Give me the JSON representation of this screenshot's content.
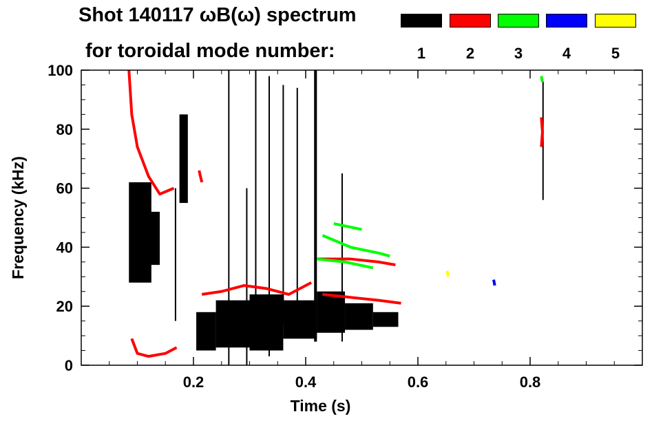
{
  "chart_data": {
    "type": "heatmap",
    "title_line1": "Shot 140117 ωB(ω) spectrum",
    "title_line2": "for toroidal mode number:",
    "xlabel": "Time (s)",
    "ylabel": "Frequency (kHz)",
    "xlim": [
      0.0,
      1.0
    ],
    "ylim": [
      0,
      100
    ],
    "x_ticks": [
      0.2,
      0.4,
      0.6,
      0.8
    ],
    "x_tick_labels": [
      "0.2",
      "0.4",
      "0.6",
      "0.8"
    ],
    "y_ticks": [
      0,
      20,
      40,
      60,
      80,
      100
    ],
    "y_tick_labels": [
      "0",
      "20",
      "40",
      "60",
      "80",
      "100"
    ],
    "legend": [
      {
        "label": "1",
        "color": "#000000"
      },
      {
        "label": "2",
        "color": "#ff0000"
      },
      {
        "label": "3",
        "color": "#00ff00"
      },
      {
        "label": "4",
        "color": "#0000ff"
      },
      {
        "label": "5",
        "color": "#ffff00"
      }
    ],
    "regions": [
      {
        "mode": 1,
        "t": [
          0.085,
          0.125
        ],
        "f": [
          28,
          62
        ]
      },
      {
        "mode": 1,
        "t": [
          0.09,
          0.14
        ],
        "f": [
          34,
          52
        ]
      },
      {
        "mode": 1,
        "t": [
          0.205,
          0.24
        ],
        "f": [
          5,
          18
        ]
      },
      {
        "mode": 1,
        "t": [
          0.24,
          0.3
        ],
        "f": [
          6,
          22
        ]
      },
      {
        "mode": 1,
        "t": [
          0.3,
          0.36
        ],
        "f": [
          5,
          24
        ]
      },
      {
        "mode": 1,
        "t": [
          0.36,
          0.42
        ],
        "f": [
          9,
          22
        ]
      },
      {
        "mode": 1,
        "t": [
          0.42,
          0.47
        ],
        "f": [
          11,
          25
        ]
      },
      {
        "mode": 1,
        "t": [
          0.47,
          0.52
        ],
        "f": [
          12,
          21
        ]
      },
      {
        "mode": 1,
        "t": [
          0.52,
          0.565
        ],
        "f": [
          13,
          18
        ]
      },
      {
        "mode": 1,
        "t": [
          0.175,
          0.19
        ],
        "f": [
          55,
          85
        ]
      },
      {
        "mode": 1,
        "t": [
          0.415,
          0.42
        ],
        "f": [
          8,
          100
        ]
      }
    ],
    "lines": [
      {
        "mode": 2,
        "points": [
          [
            0.085,
            100
          ],
          [
            0.09,
            85
          ],
          [
            0.1,
            74
          ],
          [
            0.12,
            64
          ],
          [
            0.14,
            58
          ],
          [
            0.165,
            60
          ]
        ]
      },
      {
        "mode": 2,
        "points": [
          [
            0.09,
            9
          ],
          [
            0.1,
            4
          ],
          [
            0.12,
            3
          ],
          [
            0.15,
            4
          ],
          [
            0.17,
            6
          ]
        ]
      },
      {
        "mode": 2,
        "points": [
          [
            0.215,
            24
          ],
          [
            0.25,
            25
          ],
          [
            0.29,
            27
          ],
          [
            0.33,
            26
          ],
          [
            0.37,
            24
          ],
          [
            0.41,
            28
          ]
        ]
      },
      {
        "mode": 2,
        "points": [
          [
            0.43,
            24
          ],
          [
            0.48,
            23
          ],
          [
            0.53,
            22
          ],
          [
            0.57,
            21
          ]
        ]
      },
      {
        "mode": 2,
        "points": [
          [
            0.21,
            66
          ],
          [
            0.215,
            62
          ]
        ]
      },
      {
        "mode": 2,
        "points": [
          [
            0.82,
            84
          ],
          [
            0.822,
            79
          ],
          [
            0.82,
            74
          ]
        ]
      },
      {
        "mode": 2,
        "points": [
          [
            0.42,
            36
          ],
          [
            0.48,
            36
          ],
          [
            0.53,
            35
          ],
          [
            0.56,
            34
          ]
        ]
      },
      {
        "mode": 3,
        "points": [
          [
            0.43,
            44
          ],
          [
            0.48,
            40
          ],
          [
            0.53,
            38
          ],
          [
            0.55,
            37
          ]
        ]
      },
      {
        "mode": 3,
        "points": [
          [
            0.42,
            36
          ],
          [
            0.47,
            35
          ],
          [
            0.52,
            33
          ]
        ]
      },
      {
        "mode": 3,
        "points": [
          [
            0.45,
            48
          ],
          [
            0.5,
            46
          ]
        ]
      },
      {
        "mode": 3,
        "points": [
          [
            0.82,
            98
          ],
          [
            0.822,
            96
          ]
        ]
      },
      {
        "mode": 4,
        "points": [
          [
            0.735,
            29
          ],
          [
            0.737,
            27
          ]
        ]
      },
      {
        "mode": 5,
        "points": [
          [
            0.652,
            32
          ],
          [
            0.654,
            30
          ]
        ]
      }
    ],
    "vertical_streaks": [
      {
        "mode": 1,
        "t": 0.295,
        "f": [
          0,
          60
        ]
      },
      {
        "mode": 1,
        "t": 0.335,
        "f": [
          3,
          98
        ]
      },
      {
        "mode": 1,
        "t": 0.36,
        "f": [
          14,
          95
        ]
      },
      {
        "mode": 1,
        "t": 0.465,
        "f": [
          8,
          65
        ]
      },
      {
        "mode": 1,
        "t": 0.168,
        "f": [
          15,
          60
        ]
      },
      {
        "mode": 1,
        "t": 0.263,
        "f": [
          0,
          100
        ]
      },
      {
        "mode": 1,
        "t": 0.311,
        "f": [
          20,
          100
        ]
      },
      {
        "mode": 1,
        "t": 0.385,
        "f": [
          20,
          94
        ]
      },
      {
        "mode": 1,
        "t": 0.823,
        "f": [
          56,
          96
        ]
      }
    ]
  }
}
